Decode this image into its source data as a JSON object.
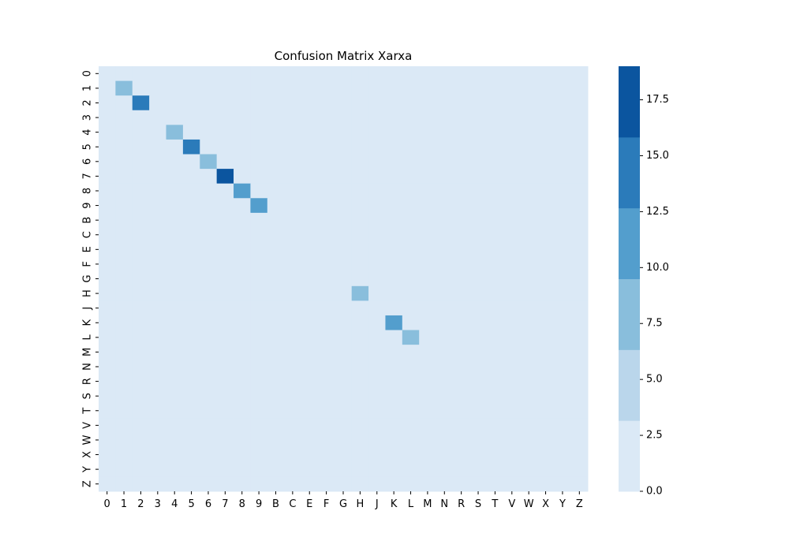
{
  "chart_data": {
    "type": "heatmap",
    "title": "Confusion Matrix Xarxa",
    "xlabel": "",
    "ylabel": "",
    "labels": [
      "0",
      "1",
      "2",
      "3",
      "4",
      "5",
      "6",
      "7",
      "8",
      "9",
      "B",
      "C",
      "E",
      "F",
      "G",
      "H",
      "J",
      "K",
      "L",
      "M",
      "N",
      "R",
      "S",
      "T",
      "V",
      "W",
      "X",
      "Y",
      "Z"
    ],
    "diagonal_values": [
      3,
      7,
      15,
      3,
      7,
      15,
      7,
      19,
      11,
      11,
      0,
      3,
      0,
      0,
      3,
      7,
      3,
      11,
      7,
      0,
      3,
      3,
      3,
      3,
      0,
      0,
      0,
      0,
      3
    ],
    "off_diagonal_value": 0,
    "colorbar": {
      "min": 0,
      "max": 19,
      "ticks": [
        "0.0",
        "2.5",
        "5.0",
        "7.5",
        "10.0",
        "12.5",
        "15.0",
        "17.5"
      ],
      "tick_values": [
        0,
        2.5,
        5,
        7.5,
        10,
        12.5,
        15,
        17.5
      ],
      "bins": 6,
      "colors": [
        "#dbe9f6",
        "#bad6eb",
        "#89bedc",
        "#539ecd",
        "#2b7bba",
        "#0b559f"
      ]
    }
  }
}
